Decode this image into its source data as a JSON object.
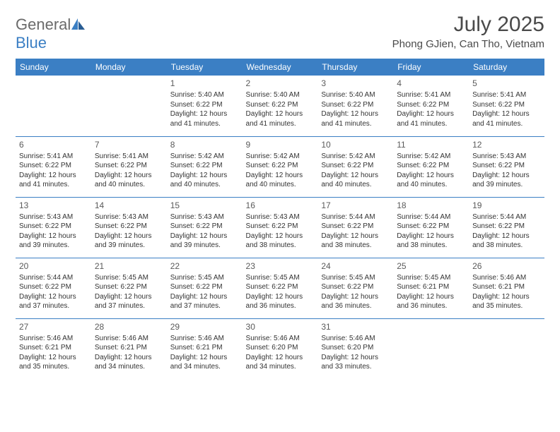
{
  "logo": {
    "text_general": "General",
    "text_blue": "Blue"
  },
  "title": "July 2025",
  "location": "Phong GJien, Can Tho, Vietnam",
  "colors": {
    "header_bg": "#3b7fc4",
    "header_text": "#ffffff",
    "border": "#3b7fc4",
    "body_text": "#333333",
    "title_text": "#4a4a4a",
    "logo_gray": "#6a6a6a",
    "logo_blue": "#3b7fc4",
    "page_bg": "#ffffff"
  },
  "fonts": {
    "title_size_pt": 22,
    "location_size_pt": 11,
    "dayname_size_pt": 9,
    "daynum_size_pt": 9,
    "cell_size_pt": 7.5
  },
  "day_names": [
    "Sunday",
    "Monday",
    "Tuesday",
    "Wednesday",
    "Thursday",
    "Friday",
    "Saturday"
  ],
  "weeks": [
    [
      null,
      null,
      {
        "n": "1",
        "sr": "Sunrise: 5:40 AM",
        "ss": "Sunset: 6:22 PM",
        "d1": "Daylight: 12 hours",
        "d2": "and 41 minutes."
      },
      {
        "n": "2",
        "sr": "Sunrise: 5:40 AM",
        "ss": "Sunset: 6:22 PM",
        "d1": "Daylight: 12 hours",
        "d2": "and 41 minutes."
      },
      {
        "n": "3",
        "sr": "Sunrise: 5:40 AM",
        "ss": "Sunset: 6:22 PM",
        "d1": "Daylight: 12 hours",
        "d2": "and 41 minutes."
      },
      {
        "n": "4",
        "sr": "Sunrise: 5:41 AM",
        "ss": "Sunset: 6:22 PM",
        "d1": "Daylight: 12 hours",
        "d2": "and 41 minutes."
      },
      {
        "n": "5",
        "sr": "Sunrise: 5:41 AM",
        "ss": "Sunset: 6:22 PM",
        "d1": "Daylight: 12 hours",
        "d2": "and 41 minutes."
      }
    ],
    [
      {
        "n": "6",
        "sr": "Sunrise: 5:41 AM",
        "ss": "Sunset: 6:22 PM",
        "d1": "Daylight: 12 hours",
        "d2": "and 41 minutes."
      },
      {
        "n": "7",
        "sr": "Sunrise: 5:41 AM",
        "ss": "Sunset: 6:22 PM",
        "d1": "Daylight: 12 hours",
        "d2": "and 40 minutes."
      },
      {
        "n": "8",
        "sr": "Sunrise: 5:42 AM",
        "ss": "Sunset: 6:22 PM",
        "d1": "Daylight: 12 hours",
        "d2": "and 40 minutes."
      },
      {
        "n": "9",
        "sr": "Sunrise: 5:42 AM",
        "ss": "Sunset: 6:22 PM",
        "d1": "Daylight: 12 hours",
        "d2": "and 40 minutes."
      },
      {
        "n": "10",
        "sr": "Sunrise: 5:42 AM",
        "ss": "Sunset: 6:22 PM",
        "d1": "Daylight: 12 hours",
        "d2": "and 40 minutes."
      },
      {
        "n": "11",
        "sr": "Sunrise: 5:42 AM",
        "ss": "Sunset: 6:22 PM",
        "d1": "Daylight: 12 hours",
        "d2": "and 40 minutes."
      },
      {
        "n": "12",
        "sr": "Sunrise: 5:43 AM",
        "ss": "Sunset: 6:22 PM",
        "d1": "Daylight: 12 hours",
        "d2": "and 39 minutes."
      }
    ],
    [
      {
        "n": "13",
        "sr": "Sunrise: 5:43 AM",
        "ss": "Sunset: 6:22 PM",
        "d1": "Daylight: 12 hours",
        "d2": "and 39 minutes."
      },
      {
        "n": "14",
        "sr": "Sunrise: 5:43 AM",
        "ss": "Sunset: 6:22 PM",
        "d1": "Daylight: 12 hours",
        "d2": "and 39 minutes."
      },
      {
        "n": "15",
        "sr": "Sunrise: 5:43 AM",
        "ss": "Sunset: 6:22 PM",
        "d1": "Daylight: 12 hours",
        "d2": "and 39 minutes."
      },
      {
        "n": "16",
        "sr": "Sunrise: 5:43 AM",
        "ss": "Sunset: 6:22 PM",
        "d1": "Daylight: 12 hours",
        "d2": "and 38 minutes."
      },
      {
        "n": "17",
        "sr": "Sunrise: 5:44 AM",
        "ss": "Sunset: 6:22 PM",
        "d1": "Daylight: 12 hours",
        "d2": "and 38 minutes."
      },
      {
        "n": "18",
        "sr": "Sunrise: 5:44 AM",
        "ss": "Sunset: 6:22 PM",
        "d1": "Daylight: 12 hours",
        "d2": "and 38 minutes."
      },
      {
        "n": "19",
        "sr": "Sunrise: 5:44 AM",
        "ss": "Sunset: 6:22 PM",
        "d1": "Daylight: 12 hours",
        "d2": "and 38 minutes."
      }
    ],
    [
      {
        "n": "20",
        "sr": "Sunrise: 5:44 AM",
        "ss": "Sunset: 6:22 PM",
        "d1": "Daylight: 12 hours",
        "d2": "and 37 minutes."
      },
      {
        "n": "21",
        "sr": "Sunrise: 5:45 AM",
        "ss": "Sunset: 6:22 PM",
        "d1": "Daylight: 12 hours",
        "d2": "and 37 minutes."
      },
      {
        "n": "22",
        "sr": "Sunrise: 5:45 AM",
        "ss": "Sunset: 6:22 PM",
        "d1": "Daylight: 12 hours",
        "d2": "and 37 minutes."
      },
      {
        "n": "23",
        "sr": "Sunrise: 5:45 AM",
        "ss": "Sunset: 6:22 PM",
        "d1": "Daylight: 12 hours",
        "d2": "and 36 minutes."
      },
      {
        "n": "24",
        "sr": "Sunrise: 5:45 AM",
        "ss": "Sunset: 6:22 PM",
        "d1": "Daylight: 12 hours",
        "d2": "and 36 minutes."
      },
      {
        "n": "25",
        "sr": "Sunrise: 5:45 AM",
        "ss": "Sunset: 6:21 PM",
        "d1": "Daylight: 12 hours",
        "d2": "and 36 minutes."
      },
      {
        "n": "26",
        "sr": "Sunrise: 5:46 AM",
        "ss": "Sunset: 6:21 PM",
        "d1": "Daylight: 12 hours",
        "d2": "and 35 minutes."
      }
    ],
    [
      {
        "n": "27",
        "sr": "Sunrise: 5:46 AM",
        "ss": "Sunset: 6:21 PM",
        "d1": "Daylight: 12 hours",
        "d2": "and 35 minutes."
      },
      {
        "n": "28",
        "sr": "Sunrise: 5:46 AM",
        "ss": "Sunset: 6:21 PM",
        "d1": "Daylight: 12 hours",
        "d2": "and 34 minutes."
      },
      {
        "n": "29",
        "sr": "Sunrise: 5:46 AM",
        "ss": "Sunset: 6:21 PM",
        "d1": "Daylight: 12 hours",
        "d2": "and 34 minutes."
      },
      {
        "n": "30",
        "sr": "Sunrise: 5:46 AM",
        "ss": "Sunset: 6:20 PM",
        "d1": "Daylight: 12 hours",
        "d2": "and 34 minutes."
      },
      {
        "n": "31",
        "sr": "Sunrise: 5:46 AM",
        "ss": "Sunset: 6:20 PM",
        "d1": "Daylight: 12 hours",
        "d2": "and 33 minutes."
      },
      null,
      null
    ]
  ]
}
